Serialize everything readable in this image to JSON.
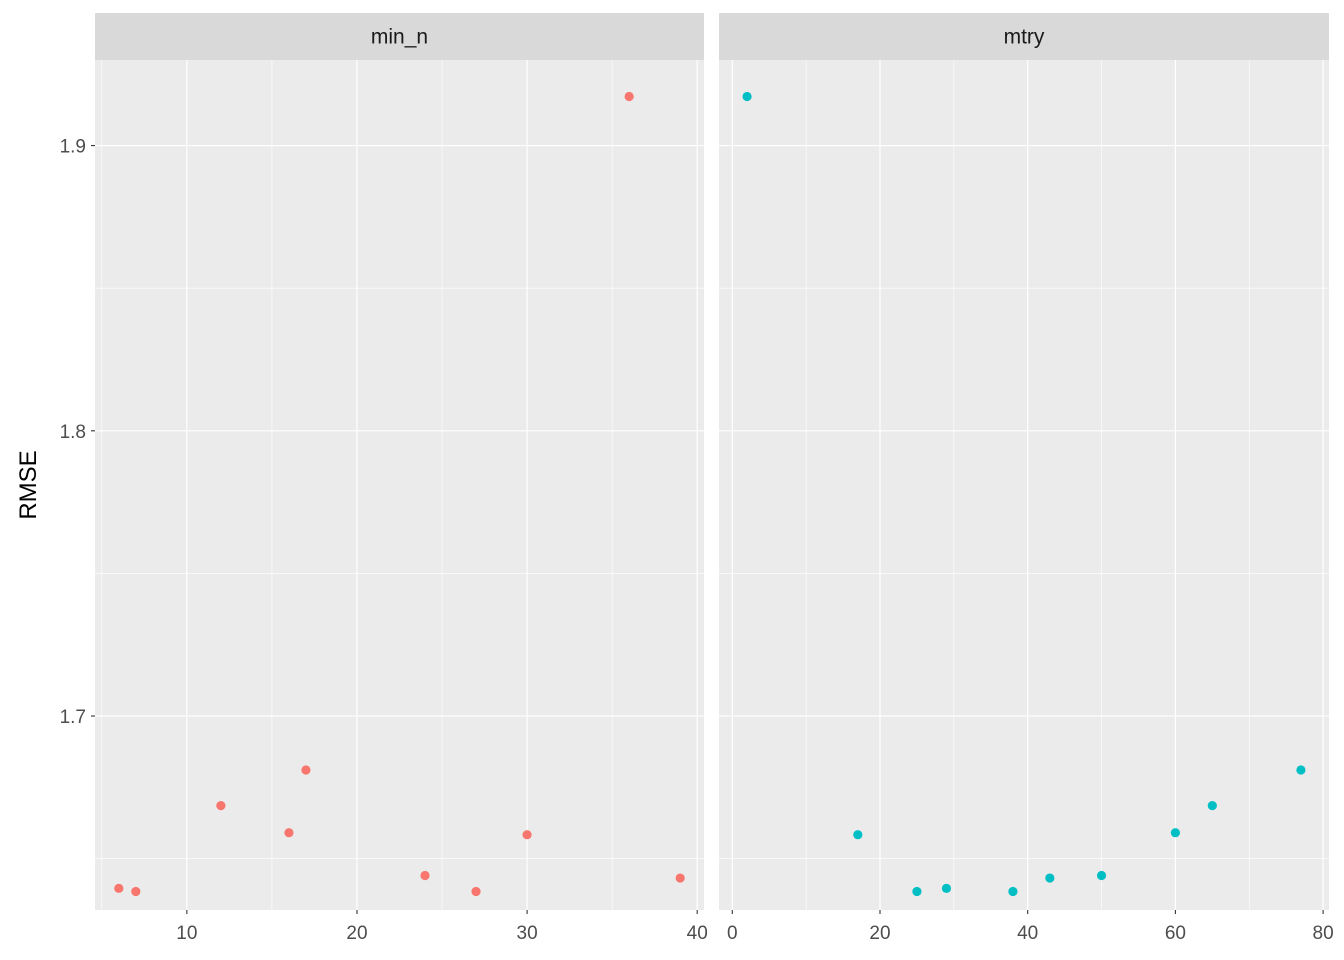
{
  "chart_data": {
    "type": "scatter",
    "ylabel": "RMSE",
    "xlabel": "",
    "ylim": [
      1.632,
      1.93
    ],
    "y_ticks": [
      1.7,
      1.8,
      1.9
    ],
    "y_tick_labels": [
      "1.7",
      "1.8",
      "1.9"
    ],
    "grid": true,
    "legend": "none",
    "facets": [
      {
        "strip": "min_n",
        "color": "#F8766D",
        "xlim": [
          4.6,
          40.4
        ],
        "x_ticks": [
          10,
          20,
          30,
          40
        ],
        "x_tick_labels": [
          "10",
          "20",
          "30",
          "40"
        ],
        "points": [
          {
            "x": 6,
            "y": 1.6396
          },
          {
            "x": 7,
            "y": 1.6385
          },
          {
            "x": 12,
            "y": 1.6686
          },
          {
            "x": 16,
            "y": 1.6591
          },
          {
            "x": 17,
            "y": 1.6811
          },
          {
            "x": 24,
            "y": 1.6441
          },
          {
            "x": 27,
            "y": 1.6385
          },
          {
            "x": 30,
            "y": 1.6584
          },
          {
            "x": 36,
            "y": 1.9172
          },
          {
            "x": 39,
            "y": 1.6432
          }
        ]
      },
      {
        "strip": "mtry",
        "color": "#00BFC4",
        "xlim": [
          -1.8,
          80.8
        ],
        "x_ticks": [
          0,
          20,
          40,
          60,
          80
        ],
        "x_tick_labels": [
          "0",
          "20",
          "40",
          "60",
          "80"
        ],
        "points": [
          {
            "x": 2,
            "y": 1.9172
          },
          {
            "x": 17,
            "y": 1.6584
          },
          {
            "x": 25,
            "y": 1.6385
          },
          {
            "x": 29,
            "y": 1.6396
          },
          {
            "x": 38,
            "y": 1.6385
          },
          {
            "x": 43,
            "y": 1.6432
          },
          {
            "x": 50,
            "y": 1.6441
          },
          {
            "x": 60,
            "y": 1.6591
          },
          {
            "x": 65,
            "y": 1.6686
          },
          {
            "x": 77,
            "y": 1.6811
          }
        ]
      }
    ]
  }
}
